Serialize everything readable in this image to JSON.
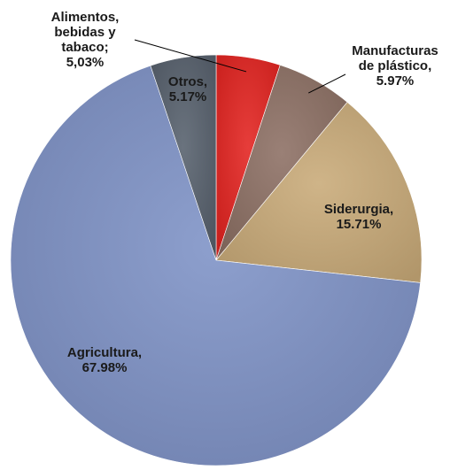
{
  "chart_data": {
    "type": "pie",
    "slices": [
      {
        "name": "Alimentos, bebidas y tabaco",
        "value": 5.03,
        "label_lines": [
          "Alimentos,",
          "bebidas y",
          "tabaco;",
          "5,03%"
        ],
        "color": "#e3221f",
        "has_leader": true
      },
      {
        "name": "Manufacturas de plástico",
        "value": 5.97,
        "label_lines": [
          "Manufacturas",
          "de plástico,",
          "5.97%"
        ],
        "color": "#8c6f63",
        "has_leader": true
      },
      {
        "name": "Siderurgia",
        "value": 15.71,
        "label_lines": [
          "Siderurgia,",
          "15.71%"
        ],
        "color": "#c9aa78",
        "has_leader": false
      },
      {
        "name": "Agricultura",
        "value": 67.98,
        "label_lines": [
          "Agricultura,",
          "67.98%"
        ],
        "color": "#7e92c6",
        "has_leader": false
      },
      {
        "name": "Otros",
        "value": 5.17,
        "label_lines": [
          "Otros,",
          "5.17%"
        ],
        "color": "#56606c",
        "has_leader": false
      }
    ],
    "start_angle_deg": 0,
    "direction": "clockwise"
  }
}
